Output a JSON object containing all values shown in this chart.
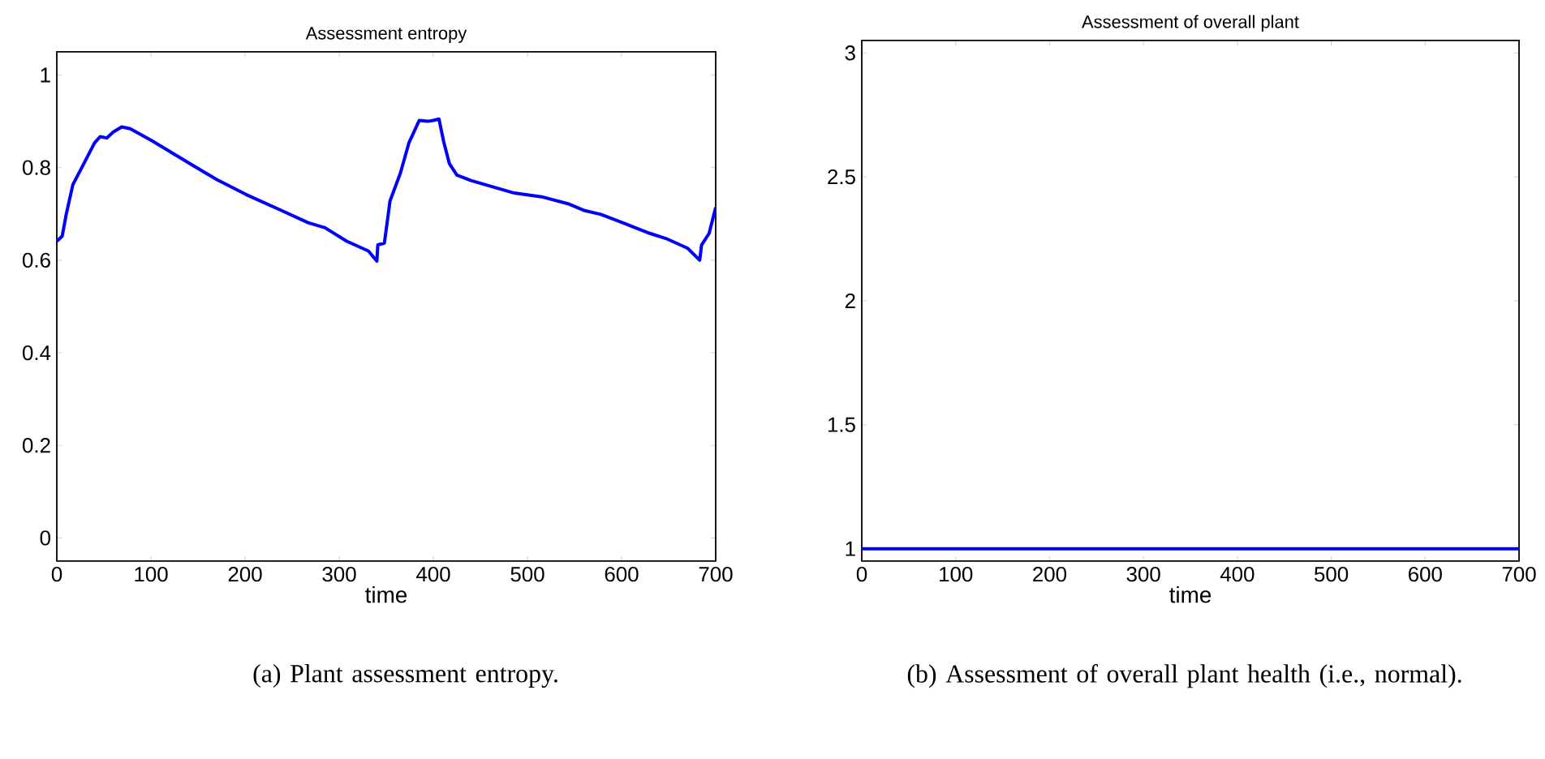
{
  "chart_data": [
    {
      "type": "line",
      "title": "Assessment entropy",
      "xlabel": "time",
      "x": [
        0,
        5.7,
        10,
        17,
        26,
        40,
        46,
        53,
        60,
        69,
        78,
        101,
        141,
        170,
        201,
        239,
        267,
        285,
        308,
        331,
        340,
        341,
        348,
        354,
        365,
        374,
        385,
        394,
        400,
        406,
        411,
        417,
        425,
        440,
        486,
        515,
        543,
        561,
        578,
        601,
        630,
        647,
        670,
        683,
        685,
        693,
        700
      ],
      "series": [
        {
          "color": "#0000ff",
          "values": [
            0.641,
            0.652,
            0.699,
            0.763,
            0.798,
            0.853,
            0.867,
            0.864,
            0.877,
            0.888,
            0.884,
            0.858,
            0.809,
            0.774,
            0.742,
            0.707,
            0.681,
            0.67,
            0.641,
            0.62,
            0.598,
            0.633,
            0.637,
            0.728,
            0.788,
            0.853,
            0.902,
            0.9,
            0.902,
            0.905,
            0.856,
            0.809,
            0.784,
            0.772,
            0.745,
            0.737,
            0.722,
            0.707,
            0.699,
            0.681,
            0.658,
            0.647,
            0.626,
            0.6,
            0.633,
            0.658,
            0.714
          ]
        }
      ],
      "xlim": [
        0,
        700
      ],
      "ylim": [
        -0.05,
        1.05
      ],
      "xticks": [
        0,
        100,
        200,
        300,
        400,
        500,
        600,
        700
      ],
      "yticks": [
        0,
        0.2,
        0.4,
        0.6,
        0.8,
        1
      ],
      "annotations": [
        "(a) Plant assessment entropy."
      ]
    },
    {
      "type": "line",
      "title": "Assessment of overall plant",
      "xlabel": "time",
      "x": [
        0,
        700
      ],
      "series": [
        {
          "color": "#0000ff",
          "values": [
            1,
            1
          ]
        }
      ],
      "xlim": [
        0,
        700
      ],
      "ylim": [
        0.95,
        3.05
      ],
      "xticks": [
        0,
        100,
        200,
        300,
        400,
        500,
        600,
        700
      ],
      "yticks": [
        1,
        1.5,
        2,
        2.5,
        3
      ],
      "annotations": [
        "(b) Assessment of overall plant health (i.e., normal)."
      ]
    }
  ]
}
